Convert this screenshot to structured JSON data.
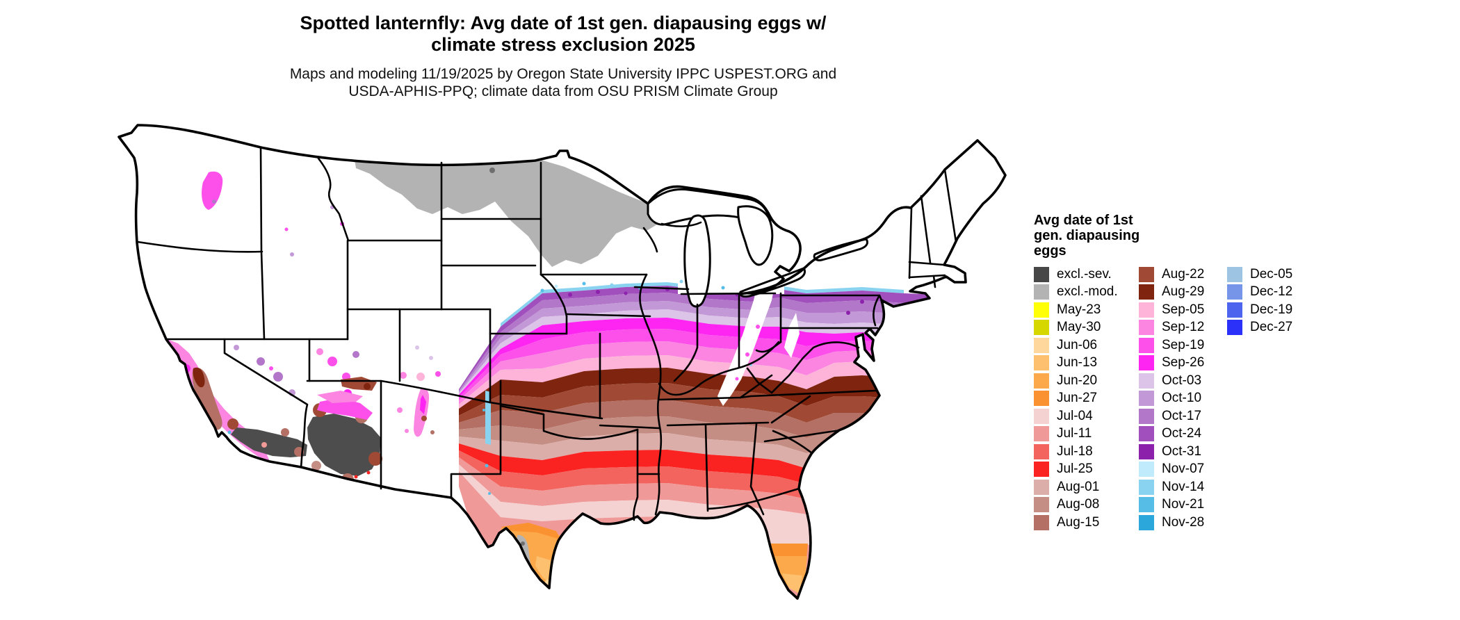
{
  "header": {
    "title": "Spotted lanternfly: Avg date of 1st gen. diapausing eggs w/\nclimate stress exclusion 2025",
    "subtitle": "Maps and modeling 11/19/2025 by Oregon State University IPPC USPEST.ORG and\nUSDA-APHIS-PPQ; climate data from OSU PRISM Climate Group"
  },
  "legend": {
    "title": "Avg date of 1st\ngen. diapausing\neggs",
    "columns": [
      [
        {
          "label": "excl.-sev.",
          "color": "#474747"
        },
        {
          "label": "excl.-mod.",
          "color": "#b3b3b3"
        },
        {
          "label": "May-23",
          "color": "#ffff05"
        },
        {
          "label": "May-30",
          "color": "#d6d600"
        },
        {
          "label": "Jun-06",
          "color": "#fdd79c"
        },
        {
          "label": "Jun-13",
          "color": "#fdc06f"
        },
        {
          "label": "Jun-20",
          "color": "#fca94c"
        },
        {
          "label": "Jun-27",
          "color": "#fb9232"
        },
        {
          "label": "Jul-04",
          "color": "#f5d2d2"
        },
        {
          "label": "Jul-11",
          "color": "#ef9a98"
        },
        {
          "label": "Jul-18",
          "color": "#f4645f"
        },
        {
          "label": "Jul-25",
          "color": "#fa2321"
        },
        {
          "label": "Aug-01",
          "color": "#dcaeaa"
        },
        {
          "label": "Aug-08",
          "color": "#c58e84"
        },
        {
          "label": "Aug-15",
          "color": "#b47064"
        }
      ],
      [
        {
          "label": "Aug-22",
          "color": "#a04a36"
        },
        {
          "label": "Aug-29",
          "color": "#7f250f"
        },
        {
          "label": "Sep-05",
          "color": "#feb4d9"
        },
        {
          "label": "Sep-12",
          "color": "#fc85e2"
        },
        {
          "label": "Sep-19",
          "color": "#fd4fea"
        },
        {
          "label": "Sep-26",
          "color": "#fe24f2"
        },
        {
          "label": "Oct-03",
          "color": "#dcc3e8"
        },
        {
          "label": "Oct-10",
          "color": "#c299d6"
        },
        {
          "label": "Oct-17",
          "color": "#b277c9"
        },
        {
          "label": "Oct-24",
          "color": "#a14fbd"
        },
        {
          "label": "Oct-31",
          "color": "#8c22ac"
        },
        {
          "label": "Nov-07",
          "color": "#bfebfc"
        },
        {
          "label": "Nov-14",
          "color": "#8ad3f0"
        },
        {
          "label": "Nov-21",
          "color": "#56bde6"
        },
        {
          "label": "Nov-28",
          "color": "#2ca7dc"
        }
      ],
      [
        {
          "label": "Dec-05",
          "color": "#9ec4e4"
        },
        {
          "label": "Dec-12",
          "color": "#7695e8"
        },
        {
          "label": "Dec-19",
          "color": "#4d64ee"
        },
        {
          "label": "Dec-27",
          "color": "#2b31f8"
        }
      ]
    ]
  },
  "map_bands": {
    "x": [
      500,
      560,
      620,
      680,
      740,
      800,
      860,
      920,
      960,
      1000,
      1040,
      1080,
      1140,
      1300
    ],
    "edges": [
      [
        390,
        300,
        252,
        248,
        243,
        241,
        248,
        251,
        246,
        252,
        250,
        248,
        252,
        258
      ],
      [
        392,
        308,
        262,
        258,
        253,
        251,
        260,
        264,
        258,
        266,
        264,
        262,
        266,
        272
      ],
      [
        394,
        316,
        274,
        270,
        265,
        263,
        272,
        276,
        272,
        280,
        280,
        278,
        282,
        286
      ],
      [
        396,
        324,
        286,
        282,
        277,
        275,
        284,
        288,
        286,
        294,
        296,
        294,
        298,
        302
      ],
      [
        398,
        332,
        298,
        292,
        288,
        287,
        296,
        300,
        300,
        308,
        310,
        308,
        312,
        316
      ],
      [
        402,
        340,
        318,
        308,
        304,
        303,
        312,
        316,
        318,
        328,
        322,
        320,
        324,
        322
      ],
      [
        406,
        350,
        338,
        326,
        322,
        321,
        330,
        334,
        338,
        348,
        336,
        334,
        338,
        334
      ],
      [
        412,
        362,
        360,
        346,
        342,
        341,
        350,
        354,
        358,
        370,
        352,
        350,
        354,
        350
      ],
      [
        418,
        376,
        380,
        364,
        360,
        359,
        368,
        372,
        378,
        390,
        372,
        370,
        374,
        370
      ],
      [
        428,
        398,
        402,
        386,
        382,
        381,
        390,
        394,
        400,
        414,
        400,
        400,
        404,
        398
      ],
      [
        438,
        420,
        424,
        410,
        406,
        405,
        414,
        418,
        424,
        438,
        424,
        424,
        428,
        420
      ],
      [
        448,
        442,
        448,
        434,
        430,
        429,
        438,
        442,
        448,
        460,
        448,
        448,
        452,
        442
      ],
      [
        458,
        464,
        470,
        458,
        454,
        453,
        462,
        466,
        470,
        482,
        470,
        470,
        474,
        462
      ],
      [
        468,
        486,
        492,
        480,
        478,
        477,
        484,
        488,
        492,
        504,
        492,
        492,
        496,
        482
      ],
      [
        478,
        508,
        514,
        504,
        502,
        501,
        508,
        512,
        516,
        526,
        514,
        514,
        518,
        502
      ],
      [
        488,
        530,
        536,
        528,
        526,
        525,
        532,
        536,
        540,
        548,
        536,
        536,
        540,
        522
      ],
      [
        498,
        552,
        558,
        552,
        550,
        549,
        556,
        560,
        564,
        570,
        558,
        558,
        562,
        542
      ],
      [
        508,
        574,
        580,
        576,
        574,
        573,
        580,
        584,
        588,
        594,
        580,
        580,
        584,
        562
      ],
      [
        530,
        722,
        722,
        722,
        722,
        722,
        722,
        722,
        722,
        722,
        722,
        722,
        722,
        722
      ]
    ],
    "colors": [
      "#a14fbd",
      "#b277c9",
      "#c299d6",
      "#dcc3e8",
      "#fe24f2",
      "#fd4fea",
      "#fc85e2",
      "#feb4d9",
      "#7f250f",
      "#a04a36",
      "#b47064",
      "#c58e84",
      "#dcaeaa",
      "#fa2321",
      "#f4645f",
      "#ef9a98",
      "#f5d2d2",
      "#ef9a98"
    ],
    "fringe_color": "#8ad3f0"
  }
}
